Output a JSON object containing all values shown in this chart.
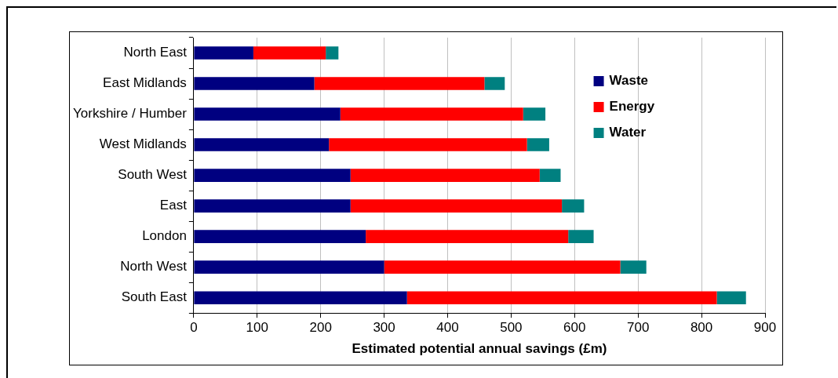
{
  "chart_data": {
    "type": "bar",
    "orientation": "horizontal",
    "stacked": true,
    "xlabel": "Estimated potential annual savings (£m)",
    "categories": [
      "North East",
      "East Midlands",
      "Yorkshire / Humber",
      "West Midlands",
      "South West",
      "East",
      "London",
      "North West",
      "South East"
    ],
    "series": [
      {
        "name": "Waste",
        "color": "#000080",
        "values": [
          94,
          190,
          231,
          213,
          247,
          247,
          271,
          300,
          336
        ]
      },
      {
        "name": "Energy",
        "color": "#ff0000",
        "values": [
          114,
          268,
          288,
          312,
          298,
          333,
          319,
          372,
          488
        ]
      },
      {
        "name": "Water",
        "color": "#008080",
        "values": [
          20,
          32,
          35,
          35,
          33,
          35,
          40,
          41,
          46
        ]
      }
    ],
    "xlim": [
      0,
      900
    ],
    "xticks": [
      0,
      100,
      200,
      300,
      400,
      500,
      600,
      700,
      800,
      900
    ],
    "grid": "x",
    "legend": "right"
  }
}
